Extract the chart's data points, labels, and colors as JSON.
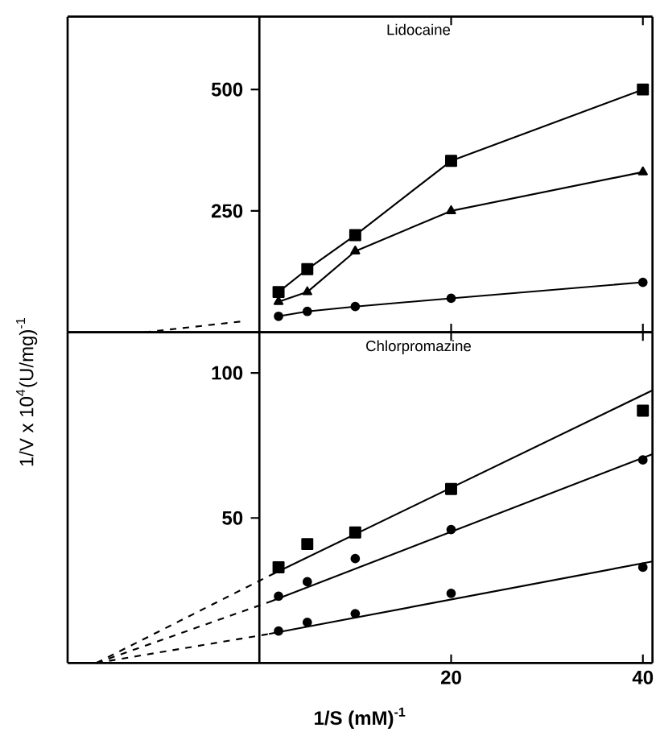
{
  "chart_data": [
    {
      "type": "line",
      "title": "Lidocaine",
      "xlim": [
        -20,
        41
      ],
      "ylim": [
        0,
        650
      ],
      "xticks": [
        20,
        40
      ],
      "yticks": [
        250,
        500
      ],
      "tick_labels": "y",
      "series": [
        {
          "marker": "square",
          "color": "#000000",
          "x": [
            2,
            5,
            10,
            20,
            40
          ],
          "values": [
            83,
            130,
            200,
            353,
            500
          ]
        },
        {
          "marker": "triangle",
          "color": "#000000",
          "x": [
            2,
            5,
            10,
            20,
            40
          ],
          "values": [
            63,
            83,
            167,
            250,
            330
          ]
        },
        {
          "marker": "circle",
          "color": "#000000",
          "x": [
            2,
            5,
            10,
            20,
            40
          ],
          "values": [
            33,
            43,
            53,
            70,
            103
          ]
        },
        {
          "marker": "none",
          "line_style": "dashed",
          "color": "#000000",
          "x": [
            -12,
            -2
          ],
          "values": [
            0,
            22
          ]
        }
      ]
    },
    {
      "type": "scatter",
      "title": "Chlorpromazine",
      "xlabel": "1/S (mM)$^{-1}$",
      "ylabel": "1/V x 10$^{4}$(U/mg)$^{-1}$",
      "xlim": [
        -20,
        41
      ],
      "ylim": [
        0,
        114
      ],
      "xticks": [
        20,
        40
      ],
      "yticks": [
        50,
        100
      ],
      "series": [
        {
          "marker": "square",
          "color": "#000000",
          "x": [
            2,
            5,
            10,
            20,
            40
          ],
          "values": [
            33,
            41,
            45,
            60,
            87
          ]
        },
        {
          "marker": "circle",
          "color": "#000000",
          "x": [
            2,
            5,
            10,
            20,
            40
          ],
          "values": [
            23,
            28,
            36,
            46,
            70
          ]
        },
        {
          "marker": "circle",
          "color": "#000000",
          "x": [
            2,
            5,
            10,
            20,
            40
          ],
          "values": [
            11,
            14,
            17,
            24,
            33
          ]
        },
        {
          "type": "line",
          "marker": "none",
          "line_style": "solid",
          "color": "#000000",
          "x": [
            1,
            41
          ],
          "values": [
            30,
            94
          ]
        },
        {
          "type": "line",
          "marker": "none",
          "line_style": "solid",
          "color": "#000000",
          "x": [
            1,
            41
          ],
          "values": [
            21,
            72
          ]
        },
        {
          "type": "line",
          "marker": "none",
          "line_style": "solid",
          "color": "#000000",
          "x": [
            1,
            41
          ],
          "values": [
            10,
            35
          ]
        },
        {
          "type": "line",
          "marker": "none",
          "line_style": "dashed",
          "color": "#000000",
          "x": [
            -17,
            1
          ],
          "values": [
            0,
            30
          ]
        },
        {
          "type": "line",
          "marker": "none",
          "line_style": "dashed",
          "color": "#000000",
          "x": [
            -17,
            1
          ],
          "values": [
            0,
            21
          ]
        },
        {
          "type": "line",
          "marker": "none",
          "line_style": "dashed",
          "color": "#000000",
          "x": [
            -17,
            1
          ],
          "values": [
            0,
            10
          ]
        }
      ]
    }
  ]
}
